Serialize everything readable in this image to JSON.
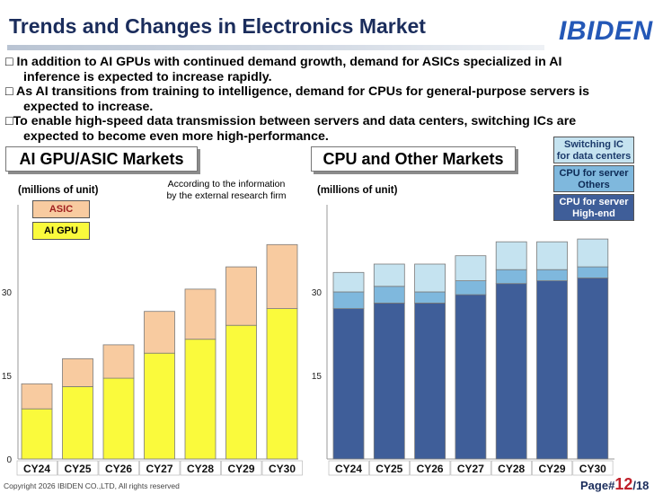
{
  "header": {
    "title": "Trends and Changes in Electronics Market",
    "logo": "IBIDEN"
  },
  "bullets": [
    [
      "□ In addition to AI GPUs with continued demand growth, demand for ASICs specialized in AI",
      "inference is expected to increase rapidly."
    ],
    [
      "□ As AI transitions from training to intelligence, demand for CPUs for general-purpose servers is",
      "expected to increase."
    ],
    [
      "□To enable high-speed data transmission between servers and data centers, switching ICs are",
      "expected to become even more high-performance."
    ]
  ],
  "left_panel": {
    "title": "AI GPU/ASIC Markets",
    "unit": "(millions of unit)",
    "note_line1": "According to the information",
    "note_line2": "by the external research firm",
    "legend": [
      {
        "label": "ASIC",
        "color": "#f8cba0"
      },
      {
        "label": "AI GPU",
        "color": "#fafa3c"
      }
    ]
  },
  "right_panel": {
    "title": "CPU and Other Markets",
    "unit": "(millions of unit)",
    "legend": [
      {
        "line1": "Switching IC",
        "line2": "for data centers",
        "color": "#c5e3f0",
        "text_color": "#1b3a6b"
      },
      {
        "line1": "CPU for server",
        "line2": "Others",
        "color": "#7fb8dd",
        "text_color": "#0d2a55"
      },
      {
        "line1": "CPU for server",
        "line2": "High-end",
        "color": "#3f5e99",
        "text_color": "#ffffff"
      }
    ]
  },
  "chart_data": [
    {
      "type": "bar",
      "stacked": true,
      "categories": [
        "CY24",
        "CY25",
        "CY26",
        "CY27",
        "CY28",
        "CY29",
        "CY30"
      ],
      "series": [
        {
          "name": "AI GPU",
          "color": "#fafa3c",
          "values": [
            9,
            13,
            14.5,
            19,
            21.5,
            24,
            27
          ]
        },
        {
          "name": "ASIC",
          "color": "#f8cba0",
          "values": [
            4.5,
            5,
            6,
            7.5,
            9,
            10.5,
            11.5
          ]
        }
      ],
      "yticks": [
        0,
        15,
        30
      ],
      "ylim": [
        0,
        42
      ],
      "grid": false
    },
    {
      "type": "bar",
      "stacked": true,
      "categories": [
        "CY24",
        "CY25",
        "CY26",
        "CY27",
        "CY28",
        "CY29",
        "CY30"
      ],
      "series": [
        {
          "name": "CPU for server High-end",
          "color": "#3f5e99",
          "values": [
            27,
            28,
            28,
            29.5,
            31.5,
            32,
            32.5
          ]
        },
        {
          "name": "CPU for server Others",
          "color": "#7fb8dd",
          "values": [
            3,
            3,
            2,
            2.5,
            2.5,
            2,
            2
          ]
        },
        {
          "name": "Switching IC for data centers",
          "color": "#c5e3f0",
          "values": [
            3.5,
            4,
            5,
            4.5,
            5,
            5,
            5
          ]
        }
      ],
      "yticks": [
        15,
        30
      ],
      "ylim": [
        0,
        42
      ],
      "grid": false
    }
  ],
  "footer": {
    "copyright": "Copyright 2026 IBIDEN CO.,LTD, All rights reserved",
    "page_prefix": "Page#",
    "page_num": "12",
    "page_total": "/18"
  }
}
